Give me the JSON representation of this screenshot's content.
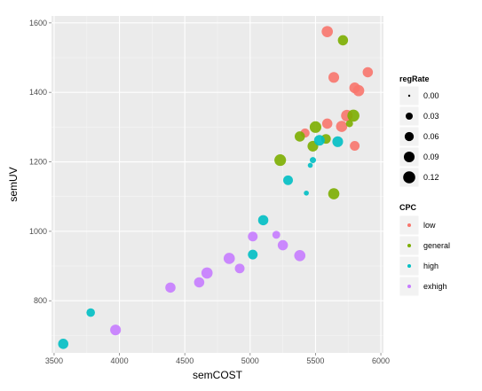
{
  "chart_data": {
    "type": "scatter",
    "xlabel": "semCOST",
    "ylabel": "semUV",
    "xlim": [
      3480,
      6020
    ],
    "ylim": [
      650,
      1620
    ],
    "x_ticks": [
      3500,
      4000,
      4500,
      5000,
      5500,
      6000
    ],
    "y_ticks": [
      800,
      1000,
      1200,
      1400,
      1600
    ],
    "grid": true,
    "background": "#EBEBEB",
    "gridline_color": "#FFFFFF",
    "size_legend": {
      "title": "regRate",
      "placement": "right",
      "values": [
        "0.00",
        "0.03",
        "0.06",
        "0.09",
        "0.12"
      ]
    },
    "color_legend": {
      "title": "CPC",
      "placement": "right"
    },
    "series": [
      {
        "name": "low",
        "color": "#F8766D",
        "points": [
          {
            "x": 5590,
            "y": 1575,
            "size": 0.1
          },
          {
            "x": 5900,
            "y": 1458,
            "size": 0.08
          },
          {
            "x": 5640,
            "y": 1443,
            "size": 0.09
          },
          {
            "x": 5800,
            "y": 1413,
            "size": 0.09
          },
          {
            "x": 5830,
            "y": 1405,
            "size": 0.1
          },
          {
            "x": 5740,
            "y": 1333,
            "size": 0.11
          },
          {
            "x": 5590,
            "y": 1310,
            "size": 0.08
          },
          {
            "x": 5700,
            "y": 1302,
            "size": 0.1
          },
          {
            "x": 5420,
            "y": 1283,
            "size": 0.06
          },
          {
            "x": 5800,
            "y": 1246,
            "size": 0.07
          }
        ]
      },
      {
        "name": "general",
        "color": "#7CAE00",
        "points": [
          {
            "x": 5710,
            "y": 1550,
            "size": 0.08
          },
          {
            "x": 5790,
            "y": 1333,
            "size": 0.12
          },
          {
            "x": 5500,
            "y": 1300,
            "size": 0.11
          },
          {
            "x": 5380,
            "y": 1273,
            "size": 0.08
          },
          {
            "x": 5580,
            "y": 1266,
            "size": 0.07
          },
          {
            "x": 5480,
            "y": 1245,
            "size": 0.09
          },
          {
            "x": 5230,
            "y": 1205,
            "size": 0.11
          },
          {
            "x": 5640,
            "y": 1108,
            "size": 0.1
          },
          {
            "x": 5760,
            "y": 1310,
            "size": 0.03
          }
        ]
      },
      {
        "name": "high",
        "color": "#00BFC4",
        "points": [
          {
            "x": 5530,
            "y": 1262,
            "size": 0.09
          },
          {
            "x": 5670,
            "y": 1258,
            "size": 0.09
          },
          {
            "x": 5480,
            "y": 1205,
            "size": 0.02
          },
          {
            "x": 5460,
            "y": 1190,
            "size": 0.01
          },
          {
            "x": 5290,
            "y": 1147,
            "size": 0.07
          },
          {
            "x": 5430,
            "y": 1110,
            "size": 0.01
          },
          {
            "x": 5100,
            "y": 1032,
            "size": 0.08
          },
          {
            "x": 5020,
            "y": 933,
            "size": 0.07
          },
          {
            "x": 3780,
            "y": 766,
            "size": 0.05
          },
          {
            "x": 3570,
            "y": 676,
            "size": 0.08
          }
        ]
      },
      {
        "name": "exhigh",
        "color": "#C77CFF",
        "points": [
          {
            "x": 5200,
            "y": 990,
            "size": 0.04
          },
          {
            "x": 5020,
            "y": 985,
            "size": 0.07
          },
          {
            "x": 5250,
            "y": 960,
            "size": 0.08
          },
          {
            "x": 5380,
            "y": 930,
            "size": 0.1
          },
          {
            "x": 4840,
            "y": 922,
            "size": 0.1
          },
          {
            "x": 4920,
            "y": 893,
            "size": 0.07
          },
          {
            "x": 4670,
            "y": 880,
            "size": 0.1
          },
          {
            "x": 4610,
            "y": 853,
            "size": 0.08
          },
          {
            "x": 4390,
            "y": 838,
            "size": 0.08
          },
          {
            "x": 3970,
            "y": 716,
            "size": 0.09
          }
        ]
      }
    ]
  }
}
